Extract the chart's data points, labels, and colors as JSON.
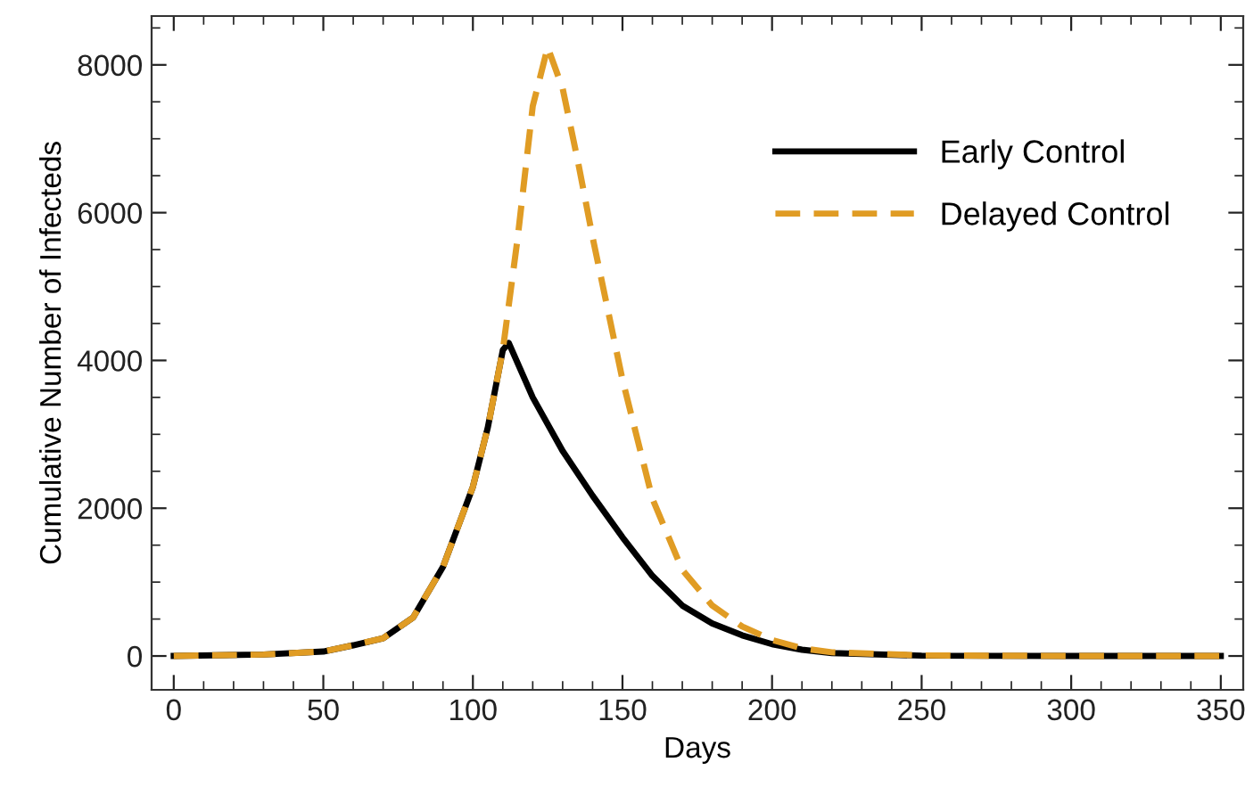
{
  "chart_data": {
    "type": "line",
    "xlabel": "Days",
    "ylabel": "Cumulative Number of Infecteds",
    "xlim": [
      -7.4,
      357.5
    ],
    "ylim": [
      -458,
      8661
    ],
    "xticks": [
      0,
      50,
      100,
      150,
      200,
      250,
      300,
      350
    ],
    "yticks": [
      0,
      2000,
      4000,
      6000,
      8000
    ],
    "grid": false,
    "legend": "top right",
    "marker": "none",
    "series": [
      {
        "name": "Early Control",
        "color": "#000000",
        "line_style": "solid",
        "x": [
          0,
          30,
          50,
          60,
          70,
          80,
          90,
          100,
          105,
          110,
          112,
          120,
          130,
          140,
          150,
          160,
          170,
          180,
          190,
          200,
          210,
          220,
          250,
          300,
          350
        ],
        "values": [
          0,
          20,
          60,
          145,
          240,
          520,
          1206,
          2290,
          3095,
          4140,
          4236,
          3500,
          2775,
          2170,
          1607,
          1085,
          683,
          440,
          280,
          160,
          85,
          40,
          5,
          0,
          0
        ]
      },
      {
        "name": "Delayed Control",
        "color": "#e09c24",
        "line_style": "dashed",
        "x": [
          0,
          30,
          50,
          60,
          70,
          80,
          90,
          100,
          105,
          110,
          115,
          120,
          125,
          130,
          135,
          140,
          150,
          160,
          170,
          180,
          190,
          200,
          210,
          220,
          250,
          300,
          350
        ],
        "values": [
          0,
          20,
          60,
          145,
          240,
          520,
          1206,
          2290,
          3095,
          4140,
          5670,
          7440,
          8240,
          7680,
          6715,
          5670,
          3740,
          2130,
          1165,
          683,
          400,
          217,
          104,
          50,
          8,
          0,
          0
        ]
      }
    ]
  }
}
